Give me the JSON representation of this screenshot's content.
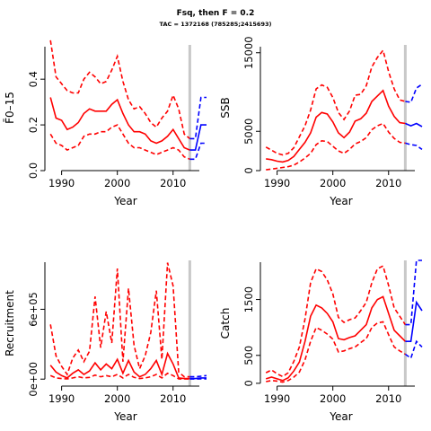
{
  "header": {
    "title": "Fsq, then F = 0.2",
    "subtitle": "TAC = 1372168 (785285;2415693)"
  },
  "colors": {
    "history": "#ff0000",
    "projection": "#0000ff",
    "marker": "#c8c8c8",
    "axis": "#000000"
  },
  "chart_data": [
    {
      "id": "fbar",
      "type": "line",
      "xlabel": "Year",
      "ylabel": "F̄0–15",
      "xlim": [
        1987,
        2016
      ],
      "ylim": [
        0,
        0.55
      ],
      "x_ticks": [
        1990,
        2000,
        2010
      ],
      "y_ticks": [
        0,
        0.2,
        0.4
      ],
      "y_tick_labels": [
        "0.0",
        "0.2",
        "0.4"
      ],
      "marker_year": 2013,
      "history": {
        "x": [
          1988,
          1989,
          1990,
          1991,
          1992,
          1993,
          1994,
          1995,
          1996,
          1997,
          1998,
          1999,
          2000,
          2001,
          2002,
          2003,
          2004,
          2005,
          2006,
          2007,
          2008,
          2009,
          2010,
          2011,
          2012,
          2013
        ],
        "mid": [
          0.32,
          0.23,
          0.22,
          0.18,
          0.19,
          0.21,
          0.25,
          0.27,
          0.26,
          0.26,
          0.26,
          0.29,
          0.31,
          0.25,
          0.2,
          0.17,
          0.17,
          0.16,
          0.13,
          0.12,
          0.13,
          0.15,
          0.18,
          0.14,
          0.1,
          0.09
        ],
        "low": [
          0.16,
          0.12,
          0.11,
          0.09,
          0.1,
          0.11,
          0.15,
          0.16,
          0.16,
          0.17,
          0.17,
          0.19,
          0.2,
          0.16,
          0.12,
          0.1,
          0.1,
          0.09,
          0.08,
          0.07,
          0.08,
          0.09,
          0.1,
          0.09,
          0.06,
          0.05
        ],
        "high": [
          0.57,
          0.41,
          0.38,
          0.35,
          0.34,
          0.34,
          0.4,
          0.43,
          0.41,
          0.38,
          0.39,
          0.44,
          0.5,
          0.39,
          0.31,
          0.27,
          0.28,
          0.25,
          0.21,
          0.19,
          0.23,
          0.26,
          0.33,
          0.27,
          0.16,
          0.14
        ]
      },
      "projection": {
        "x": [
          2013,
          2014,
          2015,
          2016
        ],
        "mid": [
          0.09,
          0.09,
          0.2,
          0.2
        ],
        "low": [
          0.05,
          0.05,
          0.12,
          0.12
        ],
        "high": [
          0.14,
          0.14,
          0.32,
          0.32
        ]
      }
    },
    {
      "id": "ssb",
      "type": "line",
      "xlabel": "Year",
      "ylabel": "SSB",
      "xlim": [
        1987,
        2016
      ],
      "ylim": [
        0,
        16000
      ],
      "x_ticks": [
        1990,
        2000,
        2010
      ],
      "y_ticks": [
        0,
        5000,
        15000
      ],
      "y_tick_labels": [
        "0",
        "5000",
        "15000"
      ],
      "marker_year": 2013,
      "history": {
        "x": [
          1988,
          1989,
          1990,
          1991,
          1992,
          1993,
          1994,
          1995,
          1996,
          1997,
          1998,
          1999,
          2000,
          2001,
          2002,
          2003,
          2004,
          2005,
          2006,
          2007,
          2008,
          2009,
          2010,
          2011,
          2012,
          2013
        ],
        "mid": [
          1500,
          1400,
          1200,
          1100,
          1300,
          1800,
          2700,
          3600,
          4800,
          6800,
          7400,
          7200,
          6200,
          4800,
          4200,
          4900,
          6300,
          6600,
          7300,
          8800,
          9500,
          10200,
          8200,
          6900,
          6100,
          6000
        ],
        "low": [
          100,
          200,
          300,
          400,
          500,
          700,
          1100,
          1600,
          2200,
          3300,
          3800,
          3700,
          3100,
          2500,
          2200,
          2700,
          3400,
          3700,
          4200,
          5200,
          5700,
          6000,
          4900,
          4100,
          3600,
          3500
        ],
        "high": [
          3000,
          2600,
          2200,
          2000,
          2200,
          2900,
          4300,
          5700,
          7700,
          10400,
          10900,
          10600,
          9300,
          7400,
          6500,
          7600,
          9600,
          9700,
          10800,
          13200,
          14400,
          15300,
          12600,
          10400,
          9000,
          8800
        ]
      },
      "projection": {
        "x": [
          2013,
          2014,
          2015,
          2016
        ],
        "mid": [
          6000,
          5700,
          6000,
          5600
        ],
        "low": [
          3500,
          3300,
          3200,
          2700
        ],
        "high": [
          8800,
          8700,
          10500,
          11000
        ]
      }
    },
    {
      "id": "recruitment",
      "type": "line",
      "xlabel": "Year",
      "ylabel": "Recruitment",
      "xlim": [
        1987,
        2016
      ],
      "ylim": [
        -60000,
        1020000
      ],
      "x_ticks": [
        1990,
        2000,
        2010
      ],
      "y_ticks": [
        0,
        600000
      ],
      "y_tick_labels": [
        "0e+00",
        "6e+05"
      ],
      "marker_year": 2013,
      "history": {
        "x": [
          1988,
          1989,
          1990,
          1991,
          1992,
          1993,
          1994,
          1995,
          1996,
          1997,
          1998,
          1999,
          2000,
          2001,
          2002,
          2003,
          2004,
          2005,
          2006,
          2007,
          2008,
          2009,
          2010,
          2011,
          2012,
          2013
        ],
        "mid": [
          120000,
          60000,
          30000,
          10000,
          50000,
          80000,
          40000,
          70000,
          140000,
          80000,
          130000,
          90000,
          170000,
          50000,
          160000,
          60000,
          20000,
          40000,
          90000,
          160000,
          40000,
          220000,
          130000,
          10000,
          5000,
          5000
        ],
        "low": [
          30000,
          10000,
          5000,
          2000,
          10000,
          20000,
          10000,
          15000,
          35000,
          20000,
          30000,
          20000,
          40000,
          10000,
          40000,
          15000,
          5000,
          10000,
          20000,
          40000,
          10000,
          50000,
          30000,
          2000,
          1000,
          1000
        ],
        "high": [
          470000,
          200000,
          110000,
          40000,
          180000,
          250000,
          150000,
          240000,
          710000,
          270000,
          580000,
          310000,
          950000,
          150000,
          780000,
          290000,
          90000,
          200000,
          400000,
          760000,
          170000,
          1000000,
          800000,
          60000,
          20000,
          20000
        ]
      },
      "projection": {
        "x": [
          2013,
          2014,
          2015,
          2016
        ],
        "mid": [
          5000,
          5000,
          10000,
          10000
        ],
        "low": [
          1000,
          1000,
          2000,
          2000
        ],
        "high": [
          20000,
          20000,
          25000,
          30000
        ]
      }
    },
    {
      "id": "catch",
      "type": "line",
      "xlabel": "Year",
      "ylabel": "Catch",
      "xlim": [
        1987,
        2016
      ],
      "ylim": [
        -50,
        2200
      ],
      "x_ticks": [
        1990,
        2000,
        2010
      ],
      "y_ticks": [
        0,
        500,
        1500
      ],
      "y_tick_labels": [
        "0",
        "500",
        "1500"
      ],
      "marker_year": 2013,
      "history": {
        "x": [
          1988,
          1989,
          1990,
          1991,
          1992,
          1993,
          1994,
          1995,
          1996,
          1997,
          1998,
          1999,
          2000,
          2001,
          2002,
          2003,
          2004,
          2005,
          2006,
          2007,
          2008,
          2009,
          2010,
          2011,
          2012,
          2013
        ],
        "mid": [
          80,
          110,
          80,
          50,
          100,
          220,
          380,
          750,
          1200,
          1400,
          1350,
          1250,
          1100,
          800,
          780,
          820,
          850,
          950,
          1050,
          1350,
          1500,
          1550,
          1250,
          950,
          850,
          750
        ],
        "low": [
          30,
          50,
          40,
          20,
          50,
          110,
          200,
          420,
          750,
          1000,
          950,
          880,
          790,
          560,
          580,
          620,
          650,
          730,
          800,
          1000,
          1080,
          1100,
          870,
          650,
          580,
          520
        ],
        "high": [
          190,
          240,
          170,
          120,
          190,
          390,
          650,
          1150,
          1800,
          2050,
          2000,
          1850,
          1600,
          1180,
          1090,
          1140,
          1170,
          1300,
          1450,
          1800,
          2050,
          2100,
          1750,
          1350,
          1200,
          1050
        ]
      },
      "projection": {
        "x": [
          2013,
          2014,
          2015,
          2016
        ],
        "mid": [
          750,
          750,
          1450,
          1300
        ],
        "low": [
          520,
          450,
          750,
          650
        ],
        "high": [
          1050,
          1050,
          2200,
          2200
        ]
      }
    }
  ]
}
